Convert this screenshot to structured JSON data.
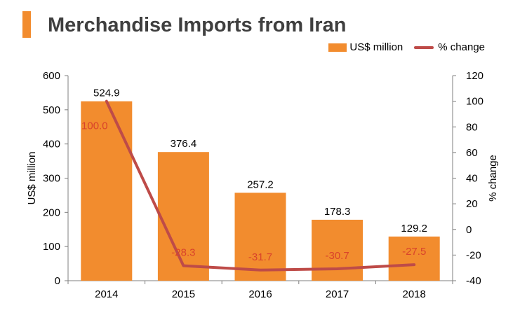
{
  "title": "Merchandise Imports from Iran",
  "colors": {
    "accent": "#f28c2e",
    "bar": "#f28c2e",
    "line": "#be4b48",
    "line_label": "#d9432b",
    "title": "#3f3f3f"
  },
  "chart_data": {
    "type": "bar",
    "categories": [
      "2014",
      "2015",
      "2016",
      "2017",
      "2018"
    ],
    "series": [
      {
        "name": "US$ million",
        "type": "bar",
        "axis": "left",
        "values": [
          524.9,
          376.4,
          257.2,
          178.3,
          129.2
        ],
        "labels": [
          "524.9",
          "376.4",
          "257.2",
          "178.3",
          "129.2"
        ]
      },
      {
        "name": "% change",
        "type": "line",
        "axis": "right",
        "values": [
          100.0,
          -28.3,
          -31.7,
          -30.7,
          -27.5
        ],
        "labels": [
          "100.0",
          "-28.3",
          "-31.7",
          "-30.7",
          "-27.5"
        ]
      }
    ],
    "ylabel": "US$ million",
    "ylim": [
      0,
      600
    ],
    "yticks": [
      "0",
      "100",
      "200",
      "300",
      "400",
      "500",
      "600"
    ],
    "y2label": "% change",
    "y2lim": [
      -40,
      120
    ],
    "y2ticks": [
      "-40",
      "-20",
      "0",
      "20",
      "40",
      "60",
      "80",
      "100",
      "120"
    ],
    "legend_position": "top-right",
    "grid": false
  }
}
